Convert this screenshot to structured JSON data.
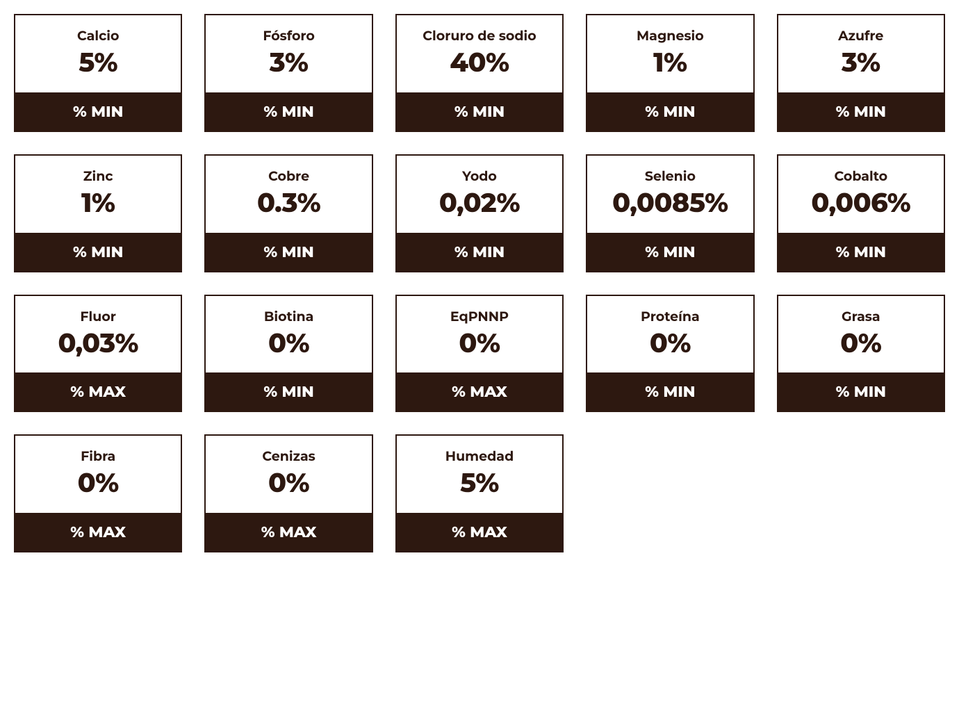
{
  "layout": {
    "type": "infographic",
    "structure": "grid",
    "columns": 5,
    "card_border_color": "#2d1810",
    "card_background": "#ffffff",
    "footer_background": "#2d1810",
    "footer_text_color": "#ffffff",
    "text_color": "#2d1810",
    "name_fontsize": 19,
    "value_fontsize": 38,
    "footer_fontsize": 22,
    "gap": 32
  },
  "cards": [
    {
      "name": "Calcio",
      "value": "5%",
      "footer": "% MIN"
    },
    {
      "name": "Fósforo",
      "value": "3%",
      "footer": "% MIN"
    },
    {
      "name": "Cloruro de sodio",
      "value": "40%",
      "footer": "% MIN"
    },
    {
      "name": "Magnesio",
      "value": "1%",
      "footer": "% MIN"
    },
    {
      "name": "Azufre",
      "value": "3%",
      "footer": "% MIN"
    },
    {
      "name": "Zinc",
      "value": "1%",
      "footer": "% MIN"
    },
    {
      "name": "Cobre",
      "value": "0.3%",
      "footer": "% MIN"
    },
    {
      "name": "Yodo",
      "value": "0,02%",
      "footer": "% MIN"
    },
    {
      "name": "Selenio",
      "value": "0,0085%",
      "footer": "% MIN"
    },
    {
      "name": "Cobalto",
      "value": "0,006%",
      "footer": "% MIN"
    },
    {
      "name": "Fluor",
      "value": "0,03%",
      "footer": "% MAX"
    },
    {
      "name": "Biotina",
      "value": "0%",
      "footer": "% MIN"
    },
    {
      "name": "EqPNNP",
      "value": "0%",
      "footer": "% MAX"
    },
    {
      "name": "Proteína",
      "value": "0%",
      "footer": "% MIN"
    },
    {
      "name": "Grasa",
      "value": "0%",
      "footer": "% MIN"
    },
    {
      "name": "Fibra",
      "value": "0%",
      "footer": "% MAX"
    },
    {
      "name": "Cenizas",
      "value": "0%",
      "footer": "% MAX"
    },
    {
      "name": "Humedad",
      "value": "5%",
      "footer": "% MAX"
    }
  ]
}
